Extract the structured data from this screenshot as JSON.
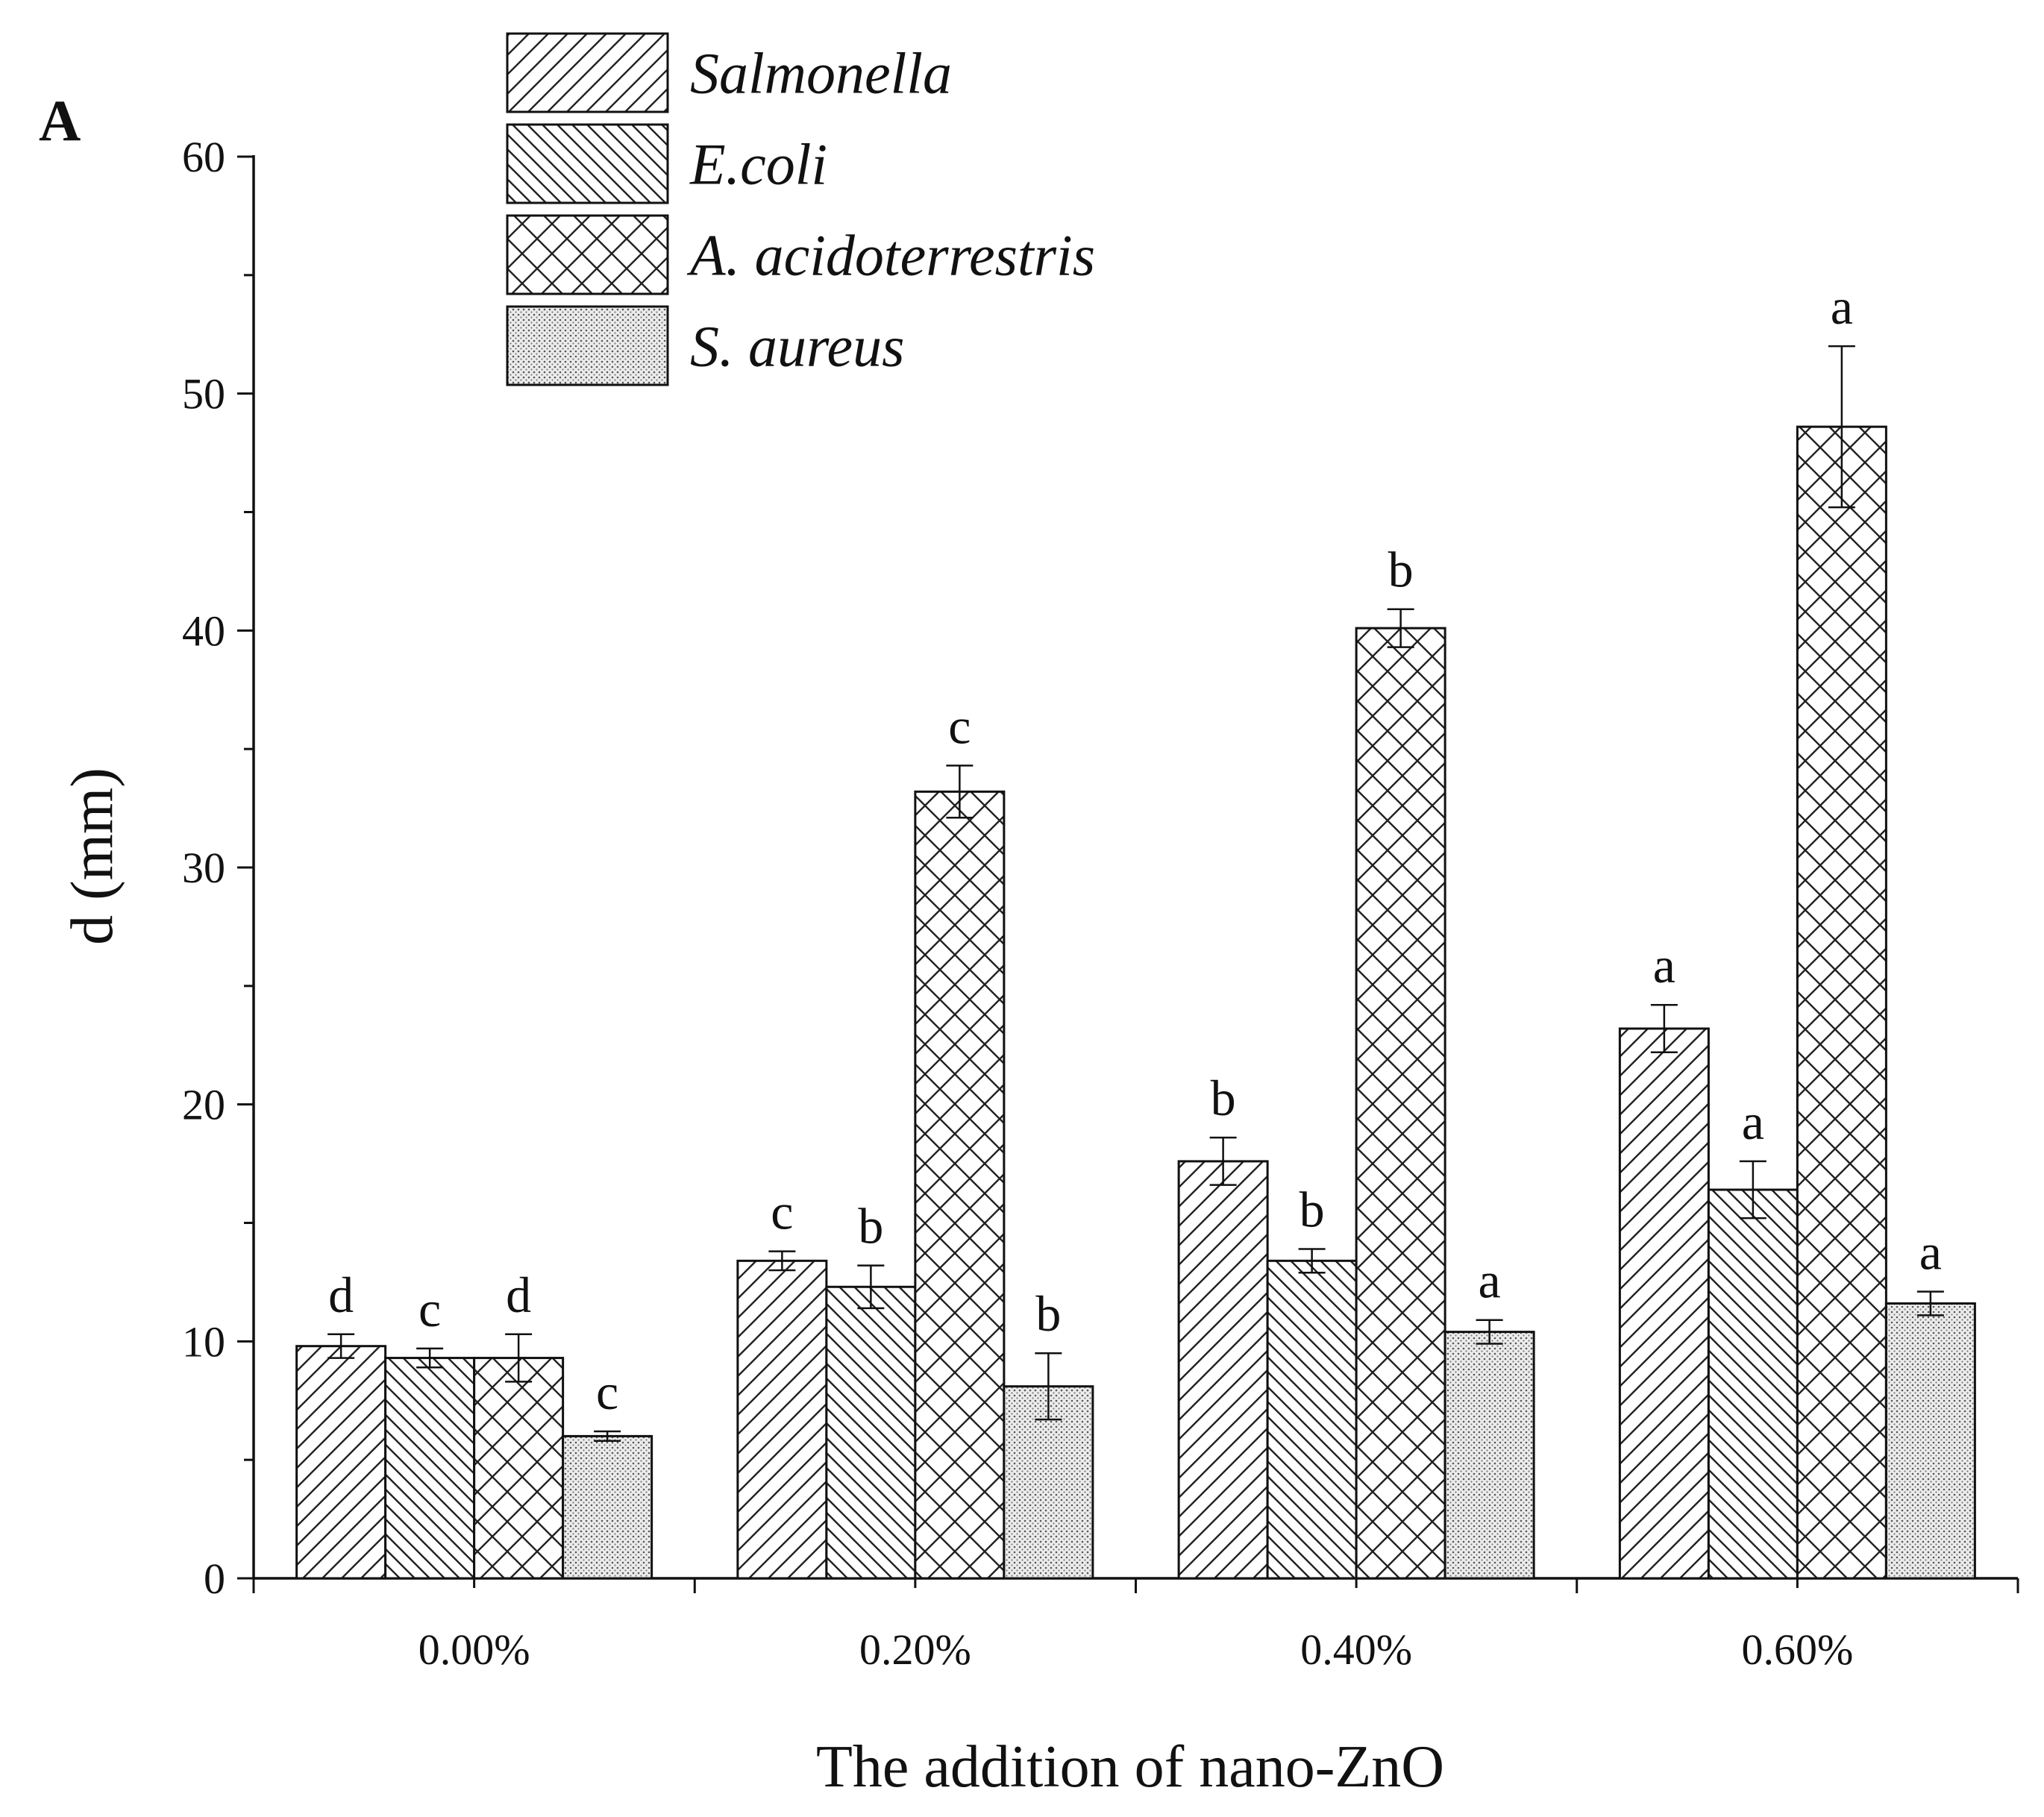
{
  "panel_label": "A",
  "chart_data": {
    "type": "bar",
    "title": "",
    "xlabel": "The addition of nano-ZnO",
    "ylabel": "d (mm)",
    "ylim": [
      0,
      60
    ],
    "yticks": [
      0,
      10,
      20,
      30,
      40,
      50,
      60
    ],
    "categories": [
      "0.00%",
      "0.20%",
      "0.40%",
      "0.60%"
    ],
    "legend_position": "top-left",
    "series": [
      {
        "name": "Salmonella",
        "pattern": "diagonal-forward",
        "values": [
          9.8,
          13.4,
          17.6,
          23.2
        ],
        "errors": [
          0.5,
          0.4,
          1.0,
          1.0
        ],
        "letters": [
          "d",
          "c",
          "b",
          "a"
        ]
      },
      {
        "name": "E.coli",
        "pattern": "diagonal-backward",
        "values": [
          9.3,
          12.3,
          13.4,
          16.4
        ],
        "errors": [
          0.4,
          0.9,
          0.5,
          1.2
        ],
        "letters": [
          "c",
          "b",
          "b",
          "a"
        ]
      },
      {
        "name": "A. acidoterrestris",
        "pattern": "crosshatch",
        "values": [
          9.3,
          33.2,
          40.1,
          48.6
        ],
        "errors": [
          1.0,
          1.1,
          0.8,
          3.4
        ],
        "letters": [
          "d",
          "c",
          "b",
          "a"
        ]
      },
      {
        "name": "S. aureus",
        "pattern": "dots",
        "values": [
          6.0,
          8.1,
          10.4,
          11.6
        ],
        "errors": [
          0.2,
          1.4,
          0.5,
          0.5
        ],
        "letters": [
          "c",
          "b",
          "a",
          "a"
        ]
      }
    ]
  }
}
